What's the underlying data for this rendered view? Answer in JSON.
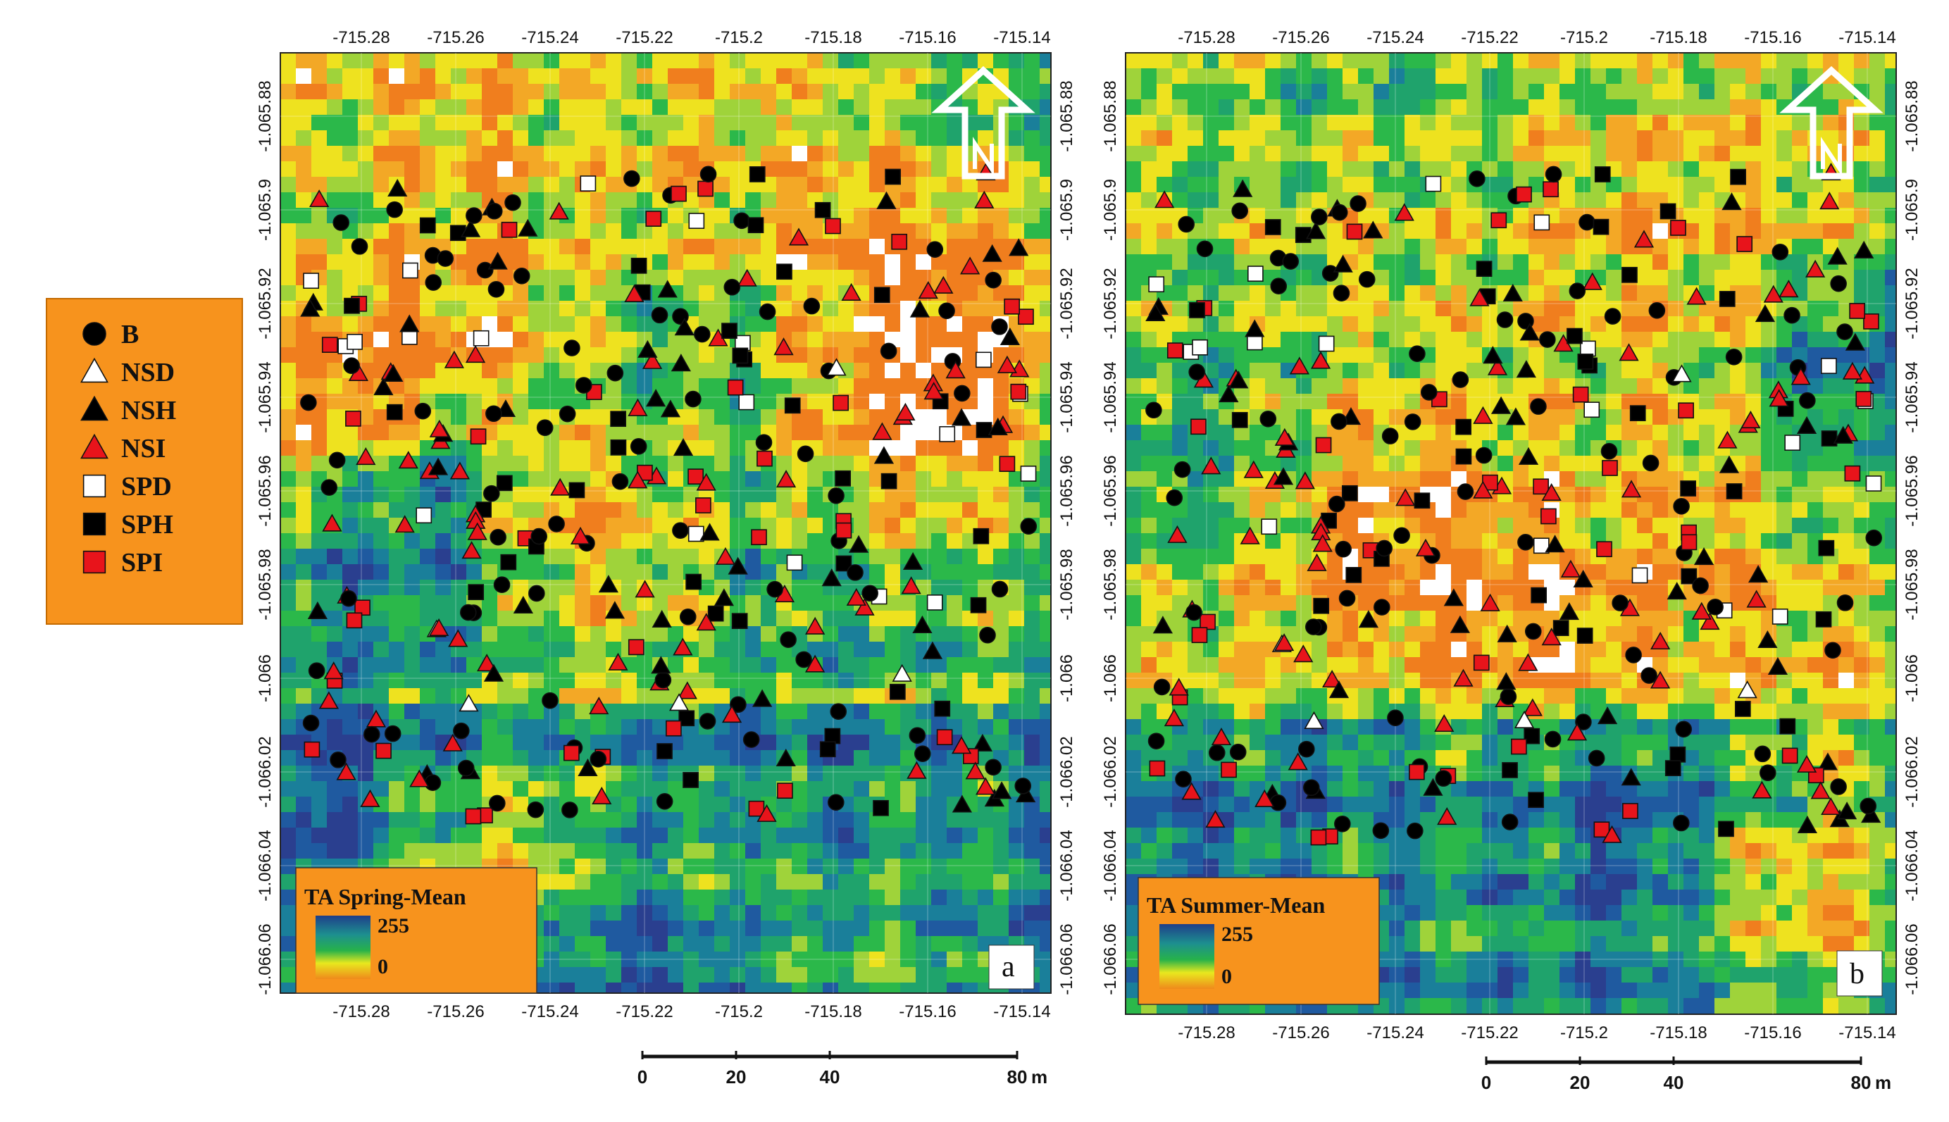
{
  "figure": {
    "legend": {
      "items": [
        {
          "label": "B",
          "shape": "circle",
          "fill": "#000000"
        },
        {
          "label": "NSD",
          "shape": "triangle",
          "fill": "#ffffff"
        },
        {
          "label": "NSH",
          "shape": "triangle",
          "fill": "#000000"
        },
        {
          "label": "NSI",
          "shape": "triangle",
          "fill": "#e8141b"
        },
        {
          "label": "SPD",
          "shape": "square",
          "fill": "#ffffff"
        },
        {
          "label": "SPH",
          "shape": "square",
          "fill": "#000000"
        },
        {
          "label": "SPI",
          "shape": "square",
          "fill": "#e8141b"
        }
      ],
      "background": "#f7931d"
    },
    "x_ticks": [
      "-715.28",
      "-715.26",
      "-715.24",
      "-715.22",
      "-715.2",
      "-715.18",
      "-715.16",
      "-715.14"
    ],
    "y_ticks": [
      "-1.065.88",
      "-1.065.9",
      "-1.065.92",
      "-1.065.94",
      "-1.065.96",
      "-1.065.98",
      "-1.066",
      "-1.066.02",
      "-1.066.04",
      "-1.066.06"
    ],
    "ramp": {
      "max_label": "255",
      "min_label": "0",
      "colors": [
        "#1e3f8a",
        "#1d8f8f",
        "#27b24a",
        "#e8e81e",
        "#ef8a1c"
      ]
    },
    "panels": [
      {
        "id": "a",
        "letter": "a",
        "ramp_title": "TA Spring-Mean",
        "scale": {
          "labels": [
            "0",
            "20",
            "40",
            "80"
          ],
          "unit": "m"
        }
      },
      {
        "id": "b",
        "letter": "b",
        "ramp_title": "TA Summer-Mean",
        "scale": {
          "labels": [
            "0",
            "20",
            "40",
            "80"
          ],
          "unit": "m"
        }
      }
    ],
    "north_arrow": "north-arrow-icon"
  }
}
